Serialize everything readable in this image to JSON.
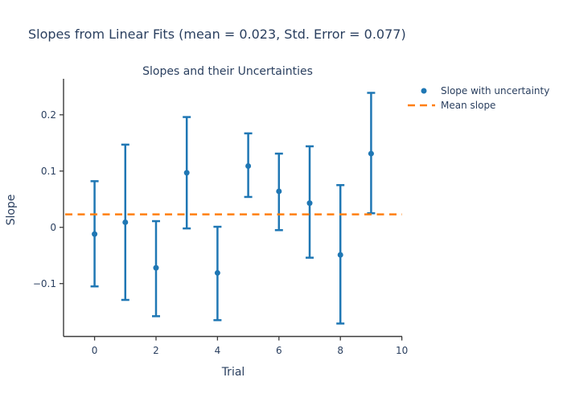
{
  "chart_data": {
    "type": "scatter",
    "title": "Slopes from Linear Fits (mean = 0.023, Std. Error = 0.077)",
    "subplot_title": "Slopes and their Uncertainties",
    "xlabel": "Trial",
    "ylabel": "Slope",
    "mean_slope": 0.023,
    "std_error": 0.077,
    "x": [
      0,
      1,
      2,
      3,
      4,
      5,
      6,
      7,
      8,
      9
    ],
    "y": [
      -0.012,
      0.009,
      -0.072,
      0.097,
      -0.081,
      0.109,
      0.064,
      0.043,
      -0.049,
      0.131
    ],
    "y_upper": [
      0.082,
      0.147,
      0.011,
      0.196,
      0.001,
      0.167,
      0.131,
      0.144,
      0.075,
      0.239
    ],
    "y_lower": [
      -0.105,
      -0.129,
      -0.158,
      -0.002,
      -0.165,
      0.054,
      -0.005,
      -0.054,
      -0.171,
      0.025
    ],
    "xlim": [
      -1.01,
      10.01
    ],
    "ylim": [
      -0.194,
      0.264
    ],
    "x_ticks": [
      0,
      2,
      4,
      6,
      8,
      10
    ],
    "y_ticks": [
      0.2,
      0.1,
      0,
      -0.1
    ],
    "grid": false,
    "legend_position": "outside-top-right",
    "legend": [
      {
        "label": "Slope with uncertainty",
        "marker": "dot",
        "color": "#1f77b4"
      },
      {
        "label": "Mean slope",
        "marker": "dashed-line",
        "color": "#ff7f0e"
      }
    ],
    "colors": {
      "points": "#1f77b4",
      "error_bars": "#1f77b4",
      "mean_line": "#ff7f0e",
      "axis_line": "#3b3b3b",
      "text": "#2a3f5f",
      "background": "#ffffff"
    }
  }
}
